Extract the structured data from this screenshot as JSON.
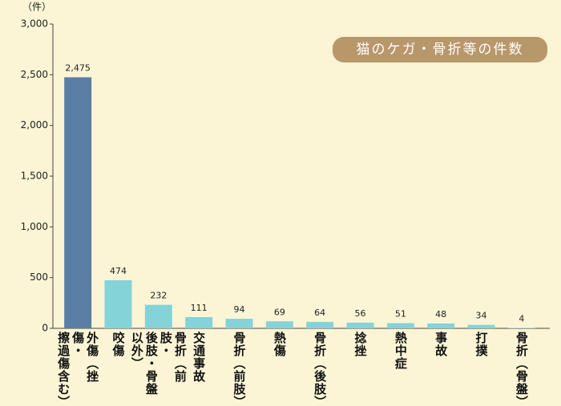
{
  "chart_data": {
    "type": "bar",
    "title": "猫のケガ・骨折等の件数",
    "y_label": "（件）",
    "categories": [
      "外傷（挫傷・\n擦過傷含む）",
      "咬傷",
      "骨折（前肢・\n後肢・骨盤以外）",
      "交通事故",
      "骨折（前肢）",
      "熱傷",
      "骨折（後肢）",
      "捻挫",
      "熱中症",
      "事故",
      "打撲",
      "骨折（骨盤）"
    ],
    "values": [
      2475,
      474,
      232,
      111,
      94,
      69,
      64,
      56,
      51,
      48,
      34,
      4
    ],
    "value_labels": [
      "2,475",
      "474",
      "232",
      "111",
      "94",
      "69",
      "64",
      "56",
      "51",
      "48",
      "34",
      "4"
    ],
    "colors": [
      "#5a7ea6",
      "#84d3d8",
      "#84d3d8",
      "#84d3d8",
      "#84d3d8",
      "#84d3d8",
      "#84d3d8",
      "#84d3d8",
      "#84d3d8",
      "#84d3d8",
      "#84d3d8",
      "#84d3d8"
    ],
    "ylim": [
      0,
      3000
    ],
    "yticks": [
      0,
      500,
      {
        "value": 1000,
        "label": "1,000"
      },
      {
        "value": 1500,
        "label": "1,500"
      },
      {
        "value": 2000,
        "label": "2,000"
      },
      {
        "value": 2500,
        "label": "2,500"
      },
      {
        "value": 3000,
        "label": "3,000"
      }
    ],
    "grid": false
  }
}
